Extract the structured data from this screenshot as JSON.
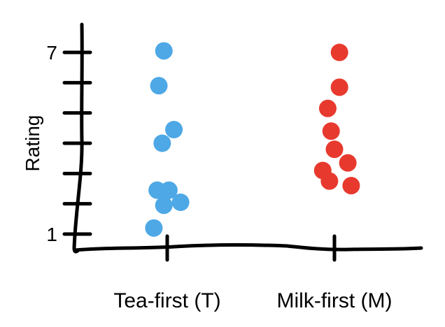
{
  "chart_data": {
    "type": "scatter",
    "title": "",
    "xlabel": "",
    "ylabel": "Rating",
    "ylim": [
      0.5,
      7.3
    ],
    "y_ticks": [
      1,
      2,
      3,
      4,
      5,
      6,
      7
    ],
    "y_tick_labels": [
      {
        "value": 1,
        "label": "1"
      },
      {
        "value": 7,
        "label": "7"
      }
    ],
    "categories": [
      "Tea-first (T)",
      "Milk-first (M)"
    ],
    "grid": false,
    "series": [
      {
        "category": "Tea-first (T)",
        "color": "#4ea8e6",
        "points": [
          {
            "x": 0.98,
            "y": 7.05
          },
          {
            "x": 0.95,
            "y": 5.9
          },
          {
            "x": 1.04,
            "y": 4.45
          },
          {
            "x": 0.97,
            "y": 4.0
          },
          {
            "x": 0.94,
            "y": 2.45
          },
          {
            "x": 1.01,
            "y": 2.45
          },
          {
            "x": 1.08,
            "y": 2.05
          },
          {
            "x": 0.98,
            "y": 1.95
          },
          {
            "x": 0.92,
            "y": 1.2
          }
        ]
      },
      {
        "category": "Milk-first (M)",
        "color": "#e8392e",
        "points": [
          {
            "x": 2.03,
            "y": 7.0
          },
          {
            "x": 2.03,
            "y": 5.85
          },
          {
            "x": 1.96,
            "y": 5.15
          },
          {
            "x": 1.98,
            "y": 4.4
          },
          {
            "x": 2.0,
            "y": 3.8
          },
          {
            "x": 2.08,
            "y": 3.35
          },
          {
            "x": 1.93,
            "y": 3.1
          },
          {
            "x": 1.97,
            "y": 2.75
          },
          {
            "x": 2.1,
            "y": 2.6
          }
        ]
      }
    ]
  }
}
